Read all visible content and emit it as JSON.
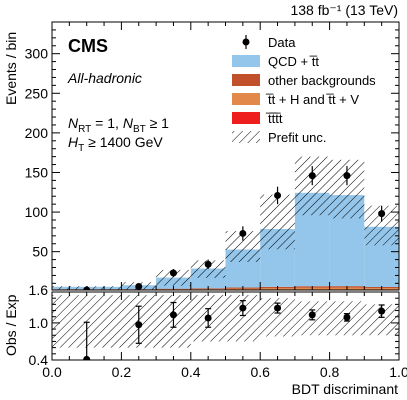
{
  "header": {
    "lumi_text": "138 fb⁻¹ (13 TeV)",
    "experiment": "CMS",
    "category": "All-hadronic",
    "selection_line1_parts": [
      "N",
      "RT",
      " = 1, ",
      "N",
      "BT",
      " ≥ 1"
    ],
    "selection_line2_parts": [
      "H",
      "T",
      " ≥ 1400 GeV"
    ]
  },
  "legend": {
    "placement": "top-right",
    "entries": [
      {
        "label": "Data",
        "kind": "marker",
        "color": "#000000"
      },
      {
        "label": "QCD + t̅t",
        "kind": "fill",
        "color": "#93c6ea"
      },
      {
        "label": "other backgrounds",
        "kind": "fill",
        "color": "#c0512a"
      },
      {
        "label": "t̅t + H and t̅t + V",
        "kind": "fill",
        "color": "#e2884b"
      },
      {
        "label": "t̅t̅t̅t",
        "kind": "fill",
        "color": "#ee1e1e"
      },
      {
        "label": "Prefit unc.",
        "kind": "hatch",
        "color": "#000000"
      }
    ]
  },
  "chart_data": {
    "type": "bar",
    "stacked": true,
    "bin_edges": [
      0.0,
      0.2,
      0.3,
      0.4,
      0.5,
      0.6,
      0.7,
      0.8,
      0.9,
      1.0
    ],
    "x_centers": [
      0.1,
      0.25,
      0.35,
      0.45,
      0.55,
      0.65,
      0.75,
      0.85,
      0.95
    ],
    "xlabel": "BDT discriminant",
    "xlim": [
      0.0,
      1.0
    ],
    "x_ticks": [
      "0.0",
      "0.2",
      "0.4",
      "0.6",
      "0.8",
      "1.0"
    ],
    "main": {
      "ylabel": "Events / bin",
      "ylim": [
        1.6,
        340
      ],
      "y_ticks": [
        "1.6",
        "50",
        "100",
        "150",
        "200",
        "250",
        "300"
      ],
      "series": [
        {
          "name": "tttt",
          "color": "#ee1e1e",
          "values": [
            0.02,
            0.02,
            0.05,
            0.08,
            0.12,
            0.15,
            0.25,
            0.35,
            0.3
          ]
        },
        {
          "name": "tt + H and tt + V",
          "color": "#e2884b",
          "values": [
            0.5,
            0.5,
            0.8,
            1.0,
            1.5,
            2.0,
            2.5,
            2.5,
            2.0
          ]
        },
        {
          "name": "other backgrounds",
          "color": "#c0512a",
          "values": [
            0.5,
            0.5,
            0.8,
            1.0,
            1.5,
            1.8,
            2.0,
            2.0,
            1.5
          ]
        },
        {
          "name": "QCD + tt",
          "color": "#93c6ea",
          "values": [
            3.0,
            5.0,
            14.0,
            25.0,
            48.0,
            73.0,
            118.0,
            115.0,
            76.0
          ]
        }
      ],
      "unc_down": [
        1.6,
        1.8,
        7.0,
        17.0,
        37.0,
        53.0,
        96.0,
        92.0,
        58.0
      ],
      "unc_up": [
        6.5,
        11.5,
        27.0,
        39.0,
        76.0,
        122.0,
        170.0,
        166.0,
        108.0
      ],
      "data": {
        "name": "Data",
        "values": [
          1.6,
          6.0,
          23.0,
          34.0,
          73.0,
          121.0,
          146.0,
          146.0,
          98.0
        ],
        "err_down": [
          1.0,
          2.5,
          5.0,
          6.0,
          9.0,
          11.0,
          12.0,
          12.0,
          10.0
        ],
        "err_up": [
          1.5,
          3.5,
          5.0,
          6.0,
          9.0,
          11.0,
          12.0,
          12.0,
          10.0
        ]
      }
    },
    "ratio": {
      "ylabel": "Obs / Exp",
      "ylim": [
        0.4,
        1.5
      ],
      "y_ticks": [
        "0.4",
        "1.0"
      ],
      "values": [
        0.41,
        0.97,
        1.13,
        1.08,
        1.24,
        1.24,
        1.13,
        1.09,
        1.19
      ],
      "err_down": [
        0.4,
        0.3,
        0.2,
        0.15,
        0.12,
        0.08,
        0.08,
        0.06,
        0.1
      ],
      "err_up": [
        0.6,
        0.3,
        0.2,
        0.15,
        0.12,
        0.08,
        0.08,
        0.06,
        0.1
      ],
      "unc_down": [
        0.6,
        0.6,
        0.6,
        0.7,
        0.7,
        0.78,
        0.8,
        0.8,
        0.8
      ],
      "unc_up": [
        1.45,
        1.45,
        1.45,
        1.45,
        1.45,
        1.4,
        1.35,
        1.35,
        1.3
      ]
    }
  }
}
